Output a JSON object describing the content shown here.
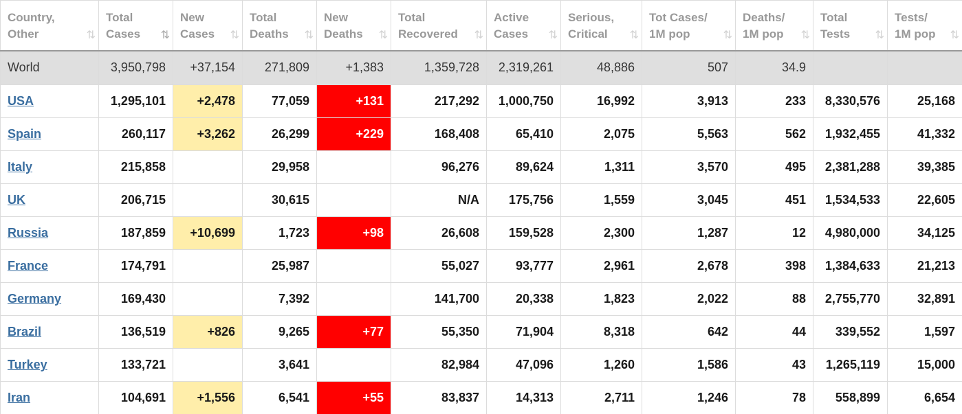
{
  "headers": [
    {
      "line1": "Country,",
      "line2": "Other",
      "sort": "⇅"
    },
    {
      "line1": "Total",
      "line2": "Cases",
      "sort": "⇅"
    },
    {
      "line1": "New",
      "line2": "Cases",
      "sort": "⇅"
    },
    {
      "line1": "Total",
      "line2": "Deaths",
      "sort": "⇅"
    },
    {
      "line1": "New",
      "line2": "Deaths",
      "sort": "⇅"
    },
    {
      "line1": "Total",
      "line2": "Recovered",
      "sort": "⇅"
    },
    {
      "line1": "Active",
      "line2": "Cases",
      "sort": "⇅"
    },
    {
      "line1": "Serious,",
      "line2": "Critical",
      "sort": "⇅"
    },
    {
      "line1": "Tot Cases/",
      "line2": "1M pop",
      "sort": "⇅"
    },
    {
      "line1": "Deaths/",
      "line2": "1M pop",
      "sort": "⇅"
    },
    {
      "line1": "Total",
      "line2": "Tests",
      "sort": "⇅"
    },
    {
      "line1": "Tests/",
      "line2": "1M pop",
      "sort": "⇅"
    }
  ],
  "sorted_column_index": 1,
  "colors": {
    "new_cases_highlight": "#ffeeaa",
    "new_deaths_highlight": "#ff0000",
    "world_row_bg": "#dfdfdf",
    "link": "#3a6ea0",
    "header_text": "#999999"
  },
  "world": [
    "World",
    "3,950,798",
    "+37,154",
    "271,809",
    "+1,383",
    "1,359,728",
    "2,319,261",
    "48,886",
    "507",
    "34.9",
    "",
    ""
  ],
  "rows": [
    [
      "USA",
      "1,295,101",
      "+2,478",
      "77,059",
      "+131",
      "217,292",
      "1,000,750",
      "16,992",
      "3,913",
      "233",
      "8,330,576",
      "25,168"
    ],
    [
      "Spain",
      "260,117",
      "+3,262",
      "26,299",
      "+229",
      "168,408",
      "65,410",
      "2,075",
      "5,563",
      "562",
      "1,932,455",
      "41,332"
    ],
    [
      "Italy",
      "215,858",
      "",
      "29,958",
      "",
      "96,276",
      "89,624",
      "1,311",
      "3,570",
      "495",
      "2,381,288",
      "39,385"
    ],
    [
      "UK",
      "206,715",
      "",
      "30,615",
      "",
      "N/A",
      "175,756",
      "1,559",
      "3,045",
      "451",
      "1,534,533",
      "22,605"
    ],
    [
      "Russia",
      "187,859",
      "+10,699",
      "1,723",
      "+98",
      "26,608",
      "159,528",
      "2,300",
      "1,287",
      "12",
      "4,980,000",
      "34,125"
    ],
    [
      "France",
      "174,791",
      "",
      "25,987",
      "",
      "55,027",
      "93,777",
      "2,961",
      "2,678",
      "398",
      "1,384,633",
      "21,213"
    ],
    [
      "Germany",
      "169,430",
      "",
      "7,392",
      "",
      "141,700",
      "20,338",
      "1,823",
      "2,022",
      "88",
      "2,755,770",
      "32,891"
    ],
    [
      "Brazil",
      "136,519",
      "+826",
      "9,265",
      "+77",
      "55,350",
      "71,904",
      "8,318",
      "642",
      "44",
      "339,552",
      "1,597"
    ],
    [
      "Turkey",
      "133,721",
      "",
      "3,641",
      "",
      "82,984",
      "47,096",
      "1,260",
      "1,586",
      "43",
      "1,265,119",
      "15,000"
    ],
    [
      "Iran",
      "104,691",
      "+1,556",
      "6,541",
      "+55",
      "83,837",
      "14,313",
      "2,711",
      "1,246",
      "78",
      "558,899",
      "6,654"
    ]
  ]
}
